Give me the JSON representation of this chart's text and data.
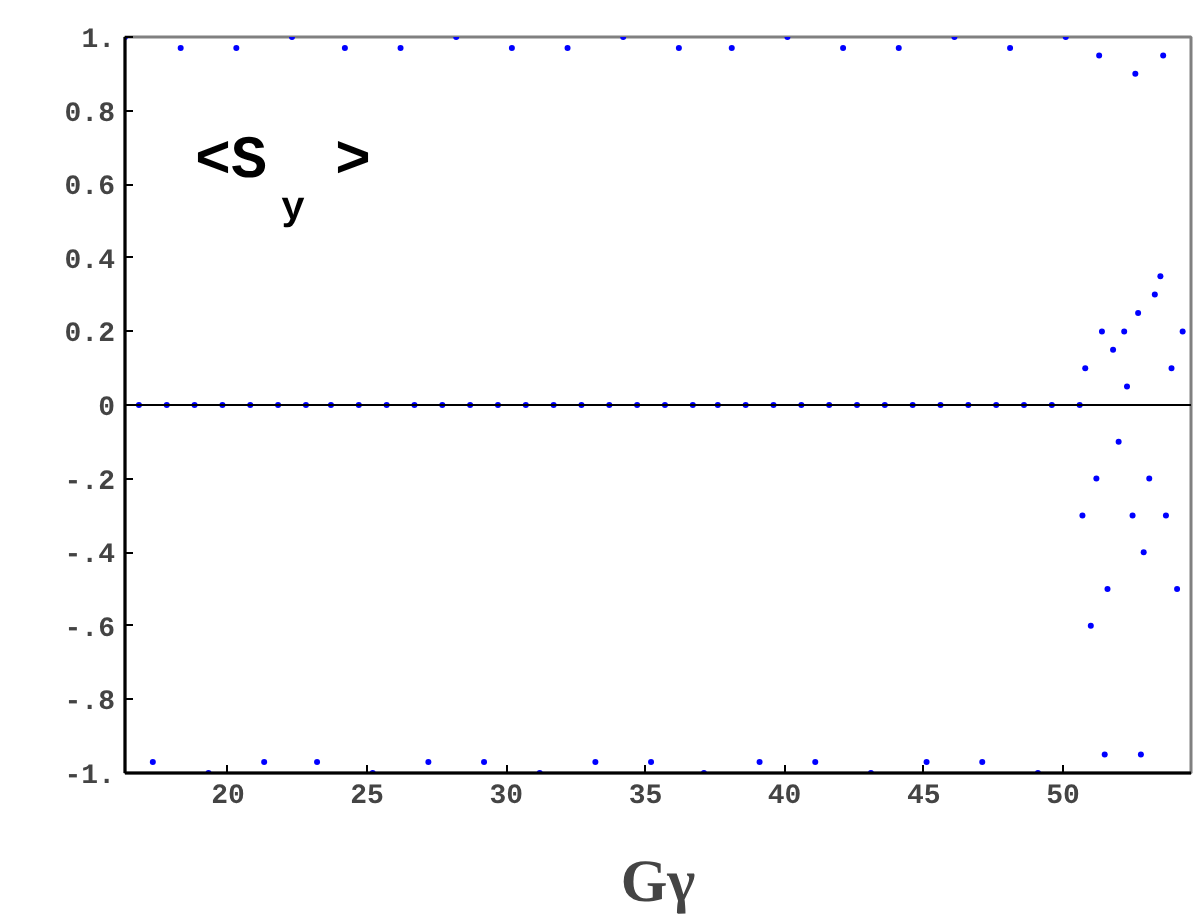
{
  "chart_data": {
    "type": "scatter",
    "xlabel": "Gγ",
    "ylabel": "<S$_{y}$>",
    "color": "#0000ff",
    "marker": "circle",
    "grid": false,
    "xlim": [
      16.3,
      54.6
    ],
    "ylim": [
      -1,
      1
    ],
    "xticks": [
      20,
      25,
      30,
      35,
      40,
      45,
      50
    ],
    "yticks": [
      {
        "value": -1,
        "label": "-1."
      },
      {
        "value": -0.8,
        "label": "-.8"
      },
      {
        "value": -0.6,
        "label": "-.6"
      },
      {
        "value": -0.4,
        "label": "-.4"
      },
      {
        "value": -0.2,
        "label": "-.2"
      },
      0,
      0.2,
      0.4,
      0.6,
      0.8,
      {
        "value": 1,
        "label": "1."
      }
    ],
    "ref_lines": [
      {
        "axis": "y",
        "value": 0,
        "color": "#000000"
      }
    ],
    "x": [
      16.3,
      16.8,
      17.3,
      17.8,
      18.3,
      18.8,
      19.3,
      19.8,
      20.3,
      20.8,
      21.3,
      21.8,
      22.3,
      22.8,
      23.2,
      23.7,
      24.2,
      24.7,
      25.2,
      25.7,
      26.2,
      26.7,
      27.2,
      27.7,
      28.2,
      28.7,
      29.2,
      29.7,
      30.2,
      30.7,
      31.2,
      31.7,
      32.2,
      32.7,
      33.2,
      33.7,
      34.2,
      34.7,
      35.2,
      35.7,
      36.2,
      36.7,
      37.1,
      37.6,
      38.1,
      38.6,
      39.1,
      39.6,
      40.1,
      40.6,
      41.1,
      41.6,
      42.1,
      42.6,
      43.1,
      43.6,
      44.1,
      44.6,
      45.1,
      45.6,
      46.1,
      46.6,
      47.1,
      47.6,
      48.1,
      48.6,
      49.1,
      49.6,
      50.1,
      50.6,
      50.7,
      50.8,
      51.0,
      51.2,
      51.4,
      51.6,
      51.8,
      52.0,
      52.2,
      52.3,
      52.5,
      52.7,
      52.9,
      53.1,
      53.3,
      53.5,
      53.7,
      53.9,
      54.1,
      54.3,
      51.3,
      52.6,
      53.6,
      51.5,
      52.8
    ],
    "values": [
      1.0,
      0,
      -0.97,
      0,
      0.97,
      0,
      -1.0,
      0,
      0.97,
      0,
      -0.97,
      0,
      1.0,
      0,
      -0.97,
      0,
      0.97,
      0,
      -1.0,
      0,
      0.97,
      0,
      -0.97,
      0,
      1.0,
      0,
      -0.97,
      0,
      0.97,
      0,
      -1.0,
      0,
      0.97,
      0,
      -0.97,
      0,
      1.0,
      0,
      -0.97,
      0,
      0.97,
      0,
      -1.0,
      0,
      0.97,
      0,
      -0.97,
      0,
      1.0,
      0,
      -0.97,
      0,
      0.97,
      0,
      -1.0,
      0,
      0.97,
      0,
      -0.97,
      0,
      1.0,
      0,
      -0.97,
      0,
      0.97,
      0,
      -1.0,
      0,
      1.0,
      0,
      -0.3,
      0.1,
      -0.6,
      -0.2,
      0.2,
      -0.5,
      0.15,
      -0.1,
      0.2,
      0.05,
      -0.3,
      0.25,
      -0.4,
      -0.2,
      0.3,
      0.35,
      -0.3,
      0.1,
      -0.5,
      0.2,
      0.95,
      0.9,
      0.95,
      -0.95,
      -0.95
    ]
  }
}
